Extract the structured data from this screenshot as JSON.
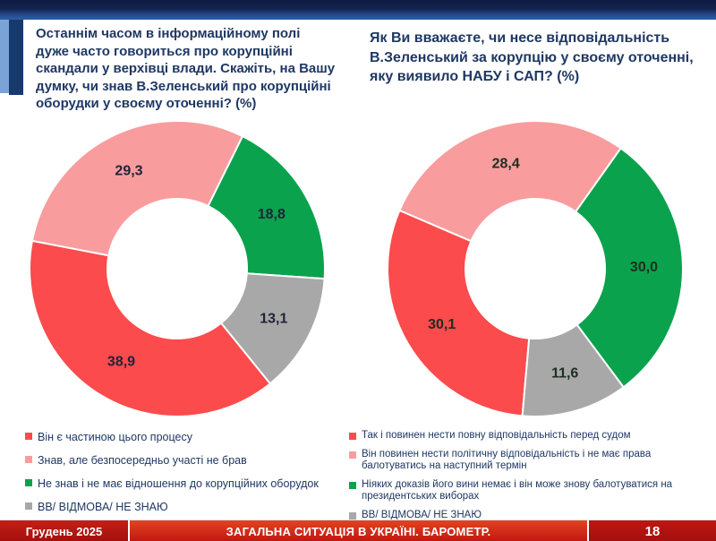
{
  "palette": {
    "title_blue": "#1f3864",
    "banner_dark_navy": "#0e1a42",
    "banner_mid_blue": "#2e5fa8",
    "accent_light_blue": "#7aa4d8",
    "accent_navy": "#173a6e",
    "footer_red_dark": "#a30f0d",
    "footer_red_bright": "#d3321e",
    "slice_red": "#fb4b4d",
    "slice_pink": "#f99c9e",
    "slice_green": "#0ba24d",
    "slice_gray": "#a8a8a8"
  },
  "chart_data": [
    {
      "type": "donut",
      "question": "Останнім часом в інформаційному полі\nдуже часто говориться про корупційні\nскандали у верхівці влади. Скажіть, на Вашу\nдумку, чи знав В.Зеленський про корупційні\nоборудки у своєму оточенні? (%)",
      "rotation_deg": 141,
      "value_label_color": "#20243a",
      "legend_position": "bottom-left",
      "slices": [
        {
          "label": "Він є частиною цього процесу",
          "value": 38.9,
          "display": "38,9",
          "color": "#fb4b4d"
        },
        {
          "label": "Знав, але безпосередньо участі не брав",
          "value": 29.3,
          "display": "29,3",
          "color": "#f99c9e"
        },
        {
          "label": "Не знав і не має відношення до корупційних оборудок",
          "value": 18.8,
          "display": "18,8",
          "color": "#0ba24d"
        },
        {
          "label": "ВВ/ ВІДМОВА/ НЕ ЗНАЮ",
          "value": 13.1,
          "display": "13,1",
          "color": "#a8a8a8"
        }
      ]
    },
    {
      "type": "donut",
      "question": "Як Ви вважаєте, чи несе відповідальність\nВ.Зеленський за корупцію у своєму оточенні,\nяку виявило НАБУ і САП? (%)",
      "rotation_deg": 185,
      "value_label_color": "#1d2f21",
      "legend_position": "bottom-left",
      "slices": [
        {
          "label": "Так і повинен нести повну відповідальність перед судом",
          "value": 30.1,
          "display": "30,1",
          "color": "#fb4b4d"
        },
        {
          "label": "Він повинен нести політичну відповідальність і не має права балотуватись на наступний термін",
          "value": 28.4,
          "display": "28,4",
          "color": "#f99c9e"
        },
        {
          "label": "Ніяких доказів його вини немає і він може знову балотуватися на президентських виборах",
          "value": 30.0,
          "display": "30,0",
          "color": "#0ba24d"
        },
        {
          "label": "ВВ/ ВІДМОВА/ НЕ ЗНАЮ",
          "value": 11.6,
          "display": "11,6",
          "color": "#a8a8a8"
        }
      ]
    }
  ],
  "footer": {
    "date": "Грудень 2025",
    "title": "ЗАГАЛЬНА СИТУАЦІЯ В УКРАЇНІ. БАРОМЕТР.",
    "page_number": "18"
  }
}
